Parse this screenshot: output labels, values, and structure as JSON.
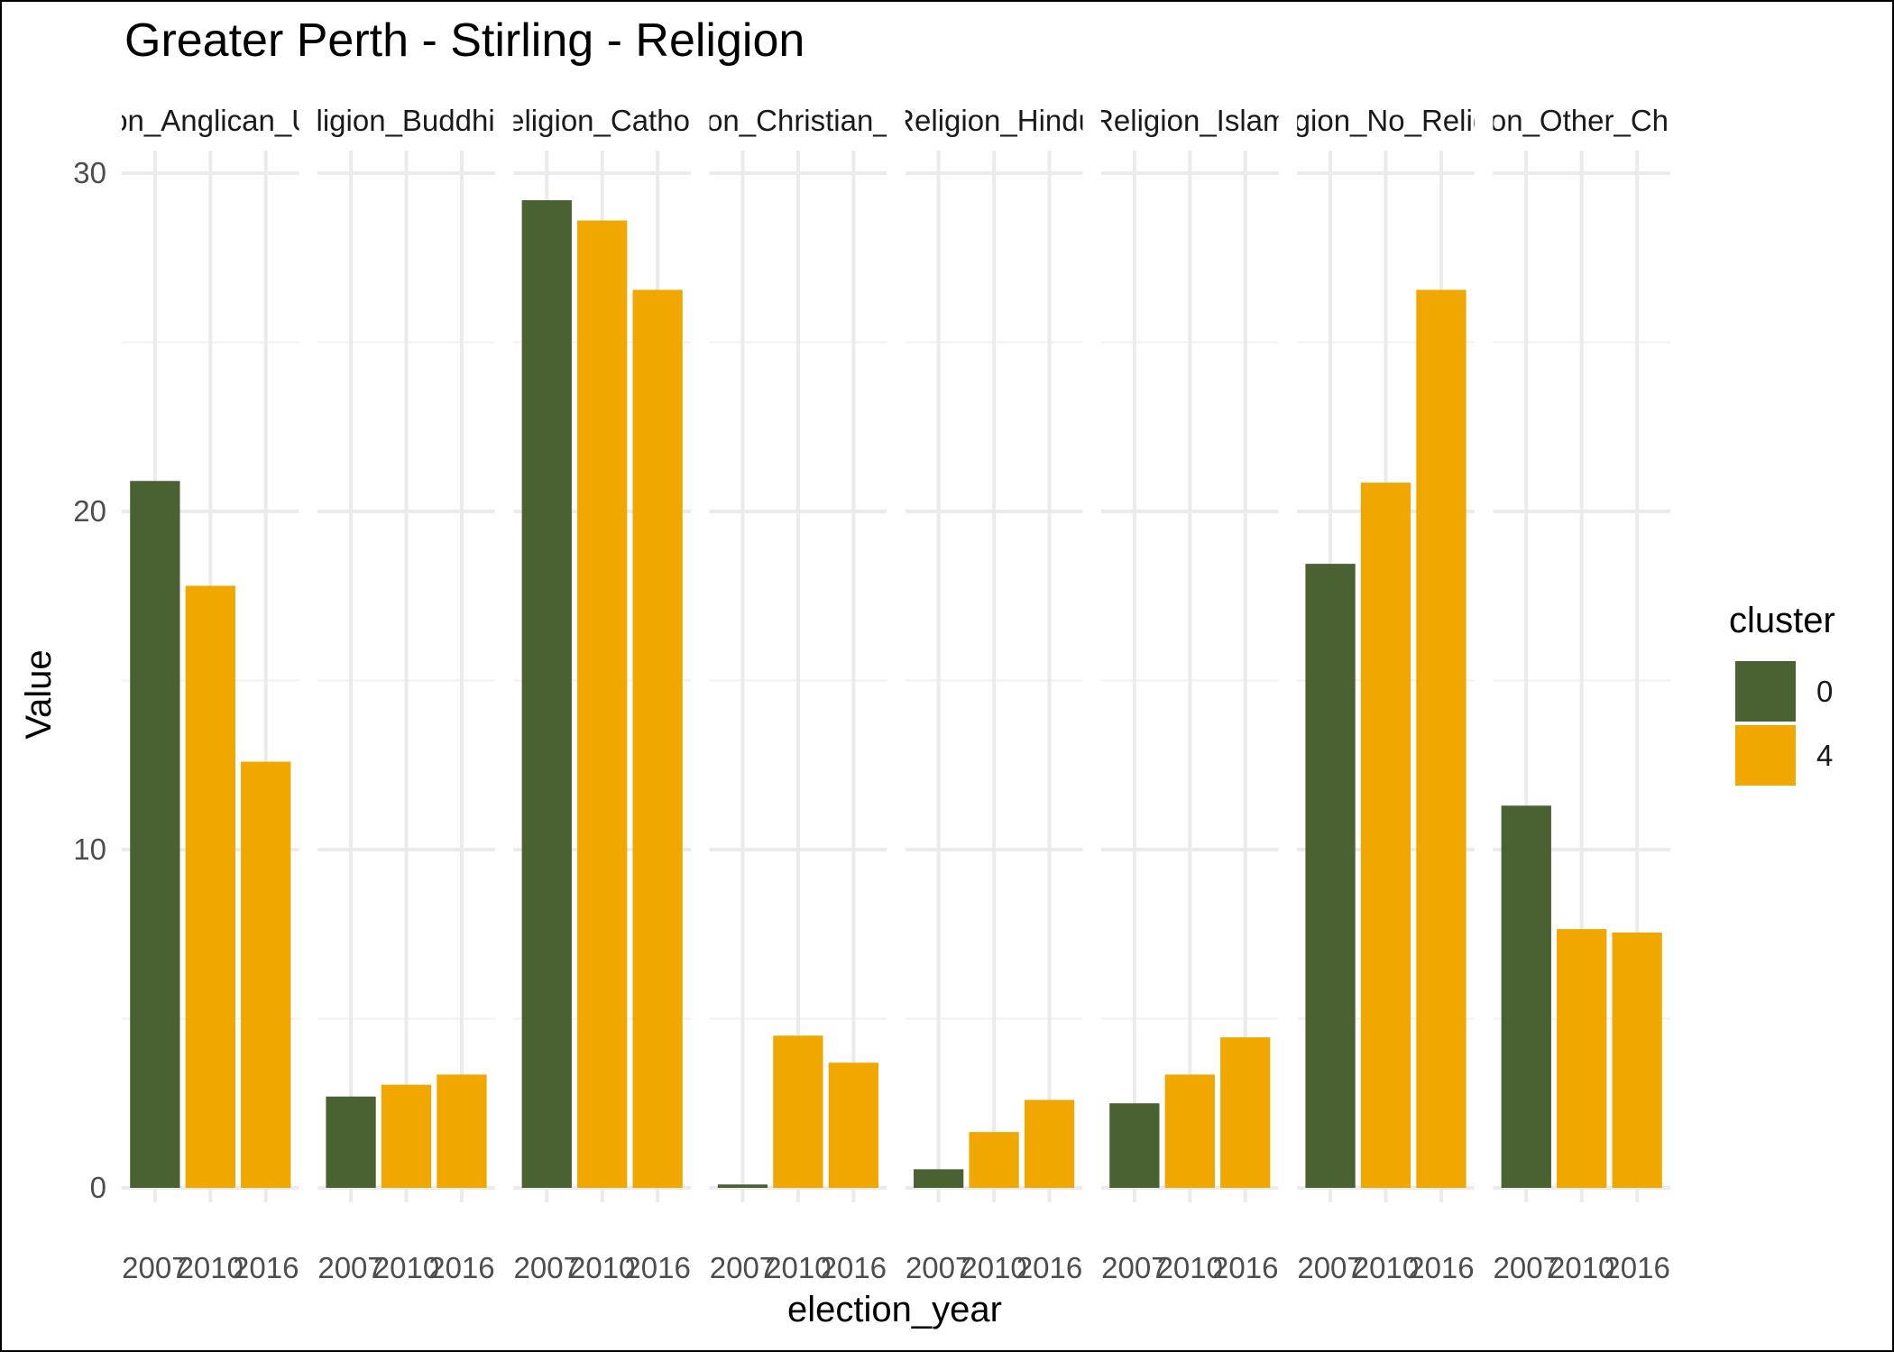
{
  "chart_data": {
    "type": "bar",
    "title": "Greater Perth - Stirling - Religion",
    "xlabel": "election_year",
    "ylabel": "Value",
    "ylim": [
      0,
      30
    ],
    "yticks": [
      0,
      10,
      20,
      30
    ],
    "grid": true,
    "legend": {
      "title": "cluster",
      "position": "right",
      "entries": [
        {
          "label": "0",
          "color": "#4a6132"
        },
        {
          "label": "4",
          "color": "#f0a800"
        }
      ]
    },
    "x_categories": [
      "2007",
      "2010",
      "2016"
    ],
    "facets": [
      {
        "label": "Religion_Anglican_Uniting",
        "values": [
          20.9,
          17.8,
          12.6
        ],
        "clusters": [
          "0",
          "4",
          "4"
        ]
      },
      {
        "label": "Religion_Buddhism",
        "values": [
          2.7,
          3.05,
          3.35
        ],
        "clusters": [
          "0",
          "4",
          "4"
        ]
      },
      {
        "label": "Religion_Catholic",
        "values": [
          29.2,
          28.6,
          26.55
        ],
        "clusters": [
          "0",
          "4",
          "4"
        ]
      },
      {
        "label": "Religion_Christian_Other",
        "values": [
          0.1,
          4.5,
          3.7
        ],
        "clusters": [
          "0",
          "4",
          "4"
        ]
      },
      {
        "label": "Religion_Hindu",
        "values": [
          0.55,
          1.65,
          2.6
        ],
        "clusters": [
          "0",
          "4",
          "4"
        ]
      },
      {
        "label": "Religion_Islam",
        "values": [
          2.5,
          3.35,
          4.45
        ],
        "clusters": [
          "0",
          "4",
          "4"
        ]
      },
      {
        "label": "Religion_No_Religion",
        "values": [
          18.45,
          20.85,
          26.55
        ],
        "clusters": [
          "0",
          "4",
          "4"
        ]
      },
      {
        "label": "Religion_Other_Christian",
        "values": [
          11.3,
          7.65,
          7.55
        ],
        "clusters": [
          "0",
          "4",
          "4"
        ]
      }
    ]
  }
}
